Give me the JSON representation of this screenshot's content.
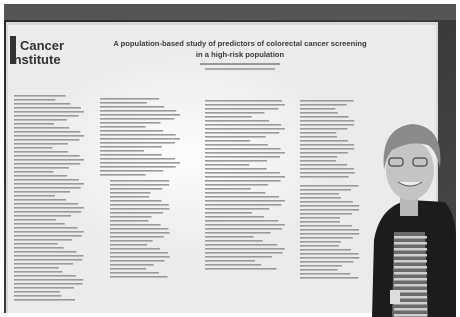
{
  "poster": {
    "logo_lines": [
      "Cancer",
      "Institute"
    ],
    "title_lines": [
      "A population-based study of predictors of colorectal cancer screening",
      "in a high-risk population"
    ]
  }
}
